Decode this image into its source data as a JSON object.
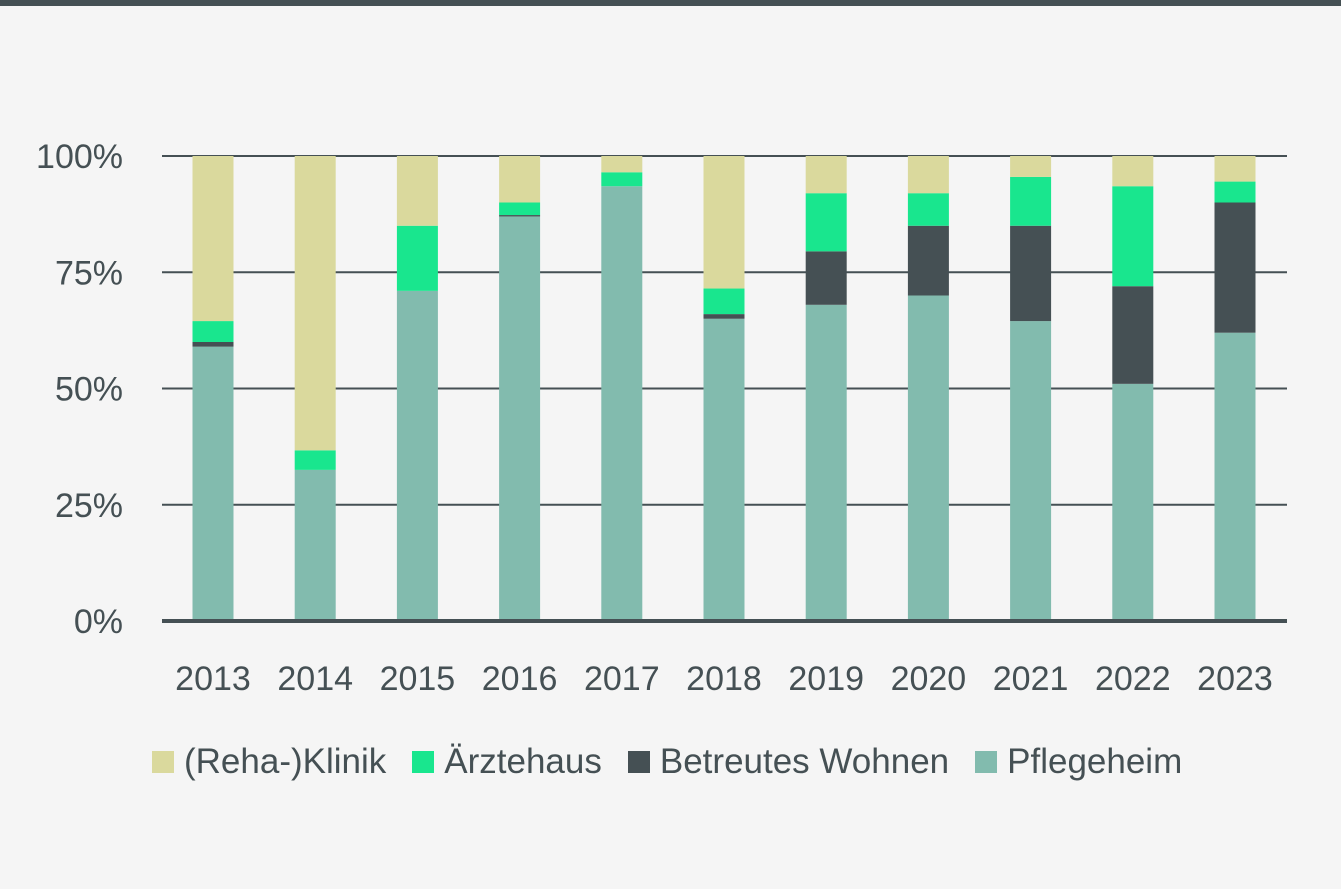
{
  "chart_data": {
    "type": "bar",
    "stacked": true,
    "categories": [
      "2013",
      "2014",
      "2015",
      "2016",
      "2017",
      "2018",
      "2019",
      "2020",
      "2021",
      "2022",
      "2023"
    ],
    "ylim": [
      0,
      100
    ],
    "yticks": [
      0,
      25,
      50,
      75,
      100
    ],
    "ytick_labels": [
      "0%",
      "25%",
      "50%",
      "75%",
      "100%"
    ],
    "grid": true,
    "legend_position": "bottom",
    "series": [
      {
        "name": "Pflegeheim",
        "color": "#82bbae",
        "values": [
          59,
          32.5,
          71,
          87,
          93.5,
          65,
          68,
          70,
          64.5,
          51,
          62
        ]
      },
      {
        "name": "Betreutes Wohnen",
        "color": "#455054",
        "values": [
          1,
          0,
          0,
          0.3,
          0,
          1,
          11.5,
          15,
          20.5,
          21,
          28
        ]
      },
      {
        "name": "Ärztehaus",
        "color": "#19e68e",
        "values": [
          4.5,
          4.2,
          14,
          2.7,
          3,
          5.5,
          12.5,
          7,
          10.5,
          21.5,
          4.5
        ]
      },
      {
        "name": "(Reha-)Klinik",
        "color": "#dad99d",
        "values": [
          35.5,
          63.3,
          15,
          10,
          3.5,
          28.5,
          8,
          8,
          4.5,
          6.5,
          5.5
        ]
      }
    ]
  },
  "legend_order": [
    "(Reha-)Klinik",
    "Ärztehaus",
    "Betreutes Wohnen",
    "Pflegeheim"
  ]
}
